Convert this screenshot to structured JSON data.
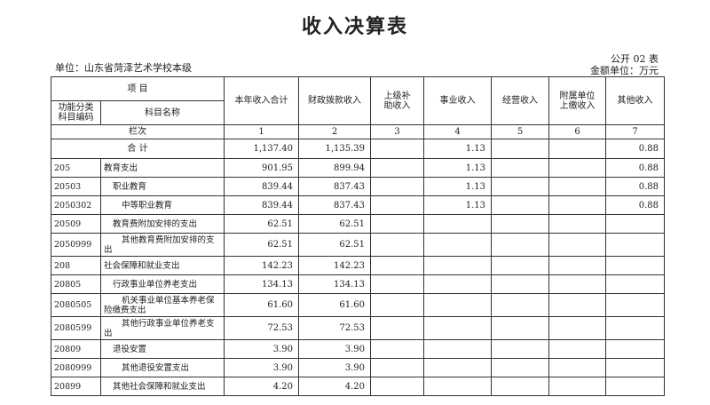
{
  "title": "收入决算表",
  "unit": "单位：山东省菏泽艺术学校本级",
  "form_no": "公开 02 表",
  "amount_unit": "金额单位：万元",
  "header": {
    "item": "项 目",
    "code": "功能分类科目编码",
    "name": "科目名称",
    "columns": [
      "本年收入合计",
      "财政拨款收入",
      "上级补助收入",
      "事业收入",
      "经营收入",
      "附属单位上缴收入",
      "其他收入"
    ],
    "row_label": "栏次",
    "col_numbers": [
      "1",
      "2",
      "3",
      "4",
      "5",
      "6",
      "7"
    ]
  },
  "total": {
    "label": "合 计",
    "values": [
      "1,137.40",
      "1,135.39",
      "",
      "1.13",
      "",
      "",
      "0.88"
    ]
  },
  "rows": [
    {
      "code": "205",
      "name": "教育支出",
      "level": 0,
      "values": [
        "901.95",
        "899.94",
        "",
        "1.13",
        "",
        "",
        "0.88"
      ]
    },
    {
      "code": "20503",
      "name": "职业教育",
      "level": 1,
      "values": [
        "839.44",
        "837.43",
        "",
        "1.13",
        "",
        "",
        "0.88"
      ]
    },
    {
      "code": "2050302",
      "name": "中等职业教育",
      "level": 2,
      "values": [
        "839.44",
        "837.43",
        "",
        "1.13",
        "",
        "",
        "0.88"
      ]
    },
    {
      "code": "20509",
      "name": "教育费附加安排的支出",
      "level": 1,
      "values": [
        "62.51",
        "62.51",
        "",
        "",
        "",
        "",
        ""
      ]
    },
    {
      "code": "2050999",
      "name": "其他教育费附加安排的支出",
      "level": 2,
      "values": [
        "62.51",
        "62.51",
        "",
        "",
        "",
        "",
        ""
      ]
    },
    {
      "code": "208",
      "name": "社会保障和就业支出",
      "level": 0,
      "values": [
        "142.23",
        "142.23",
        "",
        "",
        "",
        "",
        ""
      ]
    },
    {
      "code": "20805",
      "name": "行政事业单位养老支出",
      "level": 1,
      "values": [
        "134.13",
        "134.13",
        "",
        "",
        "",
        "",
        ""
      ]
    },
    {
      "code": "2080505",
      "name": "机关事业单位基本养老保险缴费支出",
      "level": 2,
      "values": [
        "61.60",
        "61.60",
        "",
        "",
        "",
        "",
        ""
      ]
    },
    {
      "code": "2080599",
      "name": "其他行政事业单位养老支出",
      "level": 2,
      "values": [
        "72.53",
        "72.53",
        "",
        "",
        "",
        "",
        ""
      ]
    },
    {
      "code": "20809",
      "name": "退役安置",
      "level": 1,
      "values": [
        "3.90",
        "3.90",
        "",
        "",
        "",
        "",
        ""
      ]
    },
    {
      "code": "2080999",
      "name": "其他退役安置支出",
      "level": 2,
      "values": [
        "3.90",
        "3.90",
        "",
        "",
        "",
        "",
        ""
      ]
    },
    {
      "code": "20899",
      "name": "其他社会保障和就业支出",
      "level": 1,
      "values": [
        "4.20",
        "4.20",
        "",
        "",
        "",
        "",
        ""
      ]
    }
  ]
}
